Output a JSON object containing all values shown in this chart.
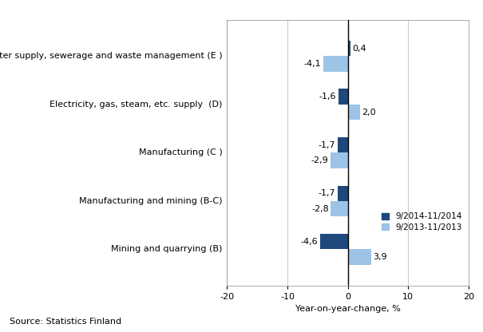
{
  "categories": [
    "Mining and quarrying (B)",
    "Manufacturing and mining (B-C)",
    "Manufacturing (C )",
    "Electricity, gas, steam, etc. supply  (D)",
    "Water supply, sewerage and waste management (E )"
  ],
  "series_2014": [
    -4.6,
    -1.7,
    -1.7,
    -1.6,
    0.4
  ],
  "series_2013": [
    3.9,
    -2.8,
    -2.9,
    2.0,
    -4.1
  ],
  "color_2014": "#1F497D",
  "color_2013": "#9DC3E6",
  "legend_2014": "9/2014-11/2014",
  "legend_2013": "9/2013-11/2013",
  "xlabel": "Year-on-year-change, %",
  "xlim": [
    -20,
    20
  ],
  "xticks": [
    -20,
    -10,
    0,
    10,
    20
  ],
  "source_text": "Source: Statistics Finland",
  "bar_height": 0.32,
  "label_fontsize": 8,
  "tick_fontsize": 8,
  "legend_fontsize": 7.5
}
